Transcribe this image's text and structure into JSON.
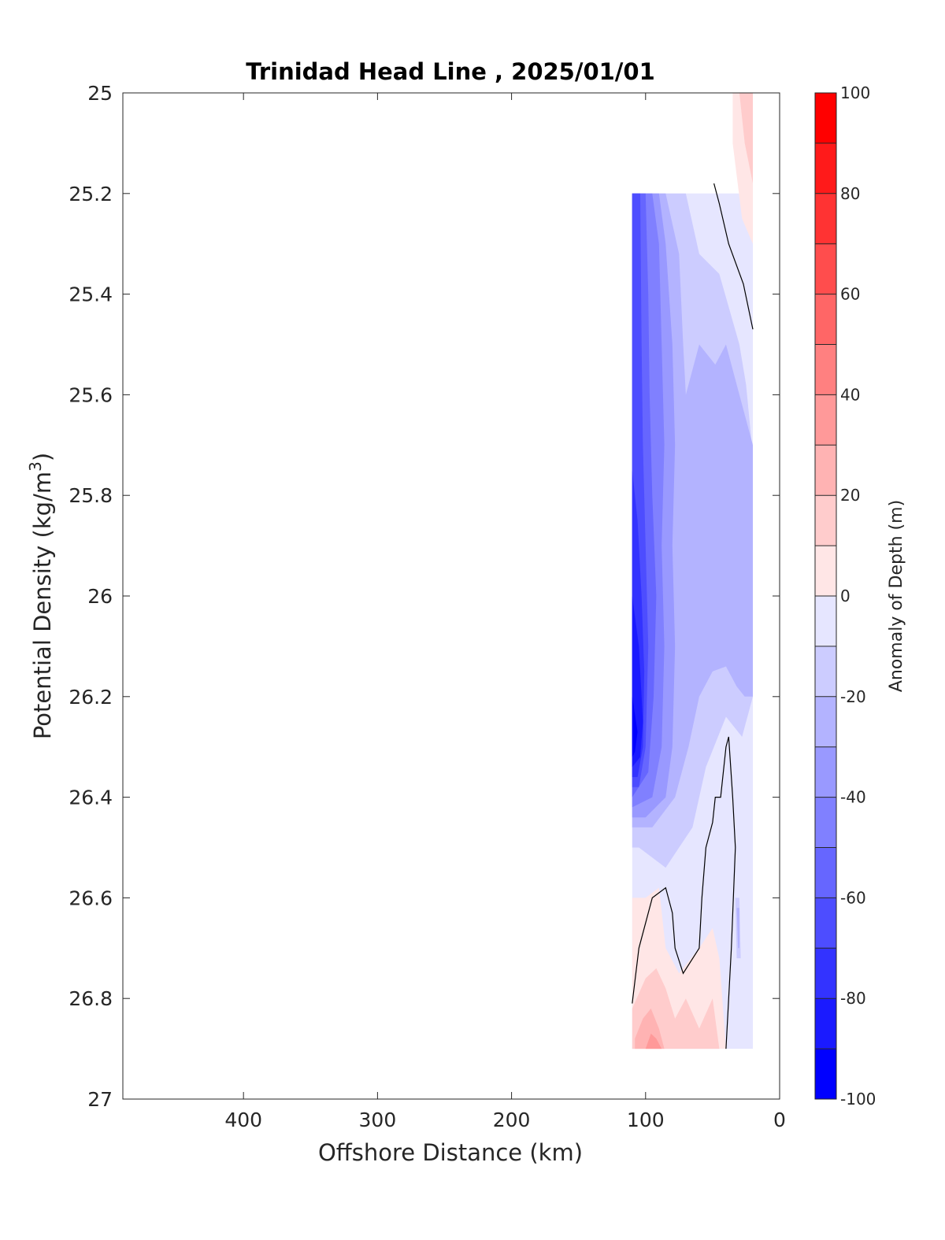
{
  "chart_data": {
    "type": "heatmap",
    "title": "Trinidad Head Line , 2025/01/01",
    "xlabel": "Offshore Distance (km)",
    "ylabel": "Potential Density (kg/m",
    "ylabel_sup": "3",
    "ylabel_end": ")",
    "xlim": [
      490,
      0
    ],
    "ylim": [
      25,
      27
    ],
    "x_reversed": true,
    "y_reversed": true,
    "x_ticks": [
      400,
      300,
      200,
      100,
      0
    ],
    "y_ticks": [
      25,
      25.2,
      25.4,
      25.6,
      25.8,
      26,
      26.2,
      26.4,
      26.6,
      26.8,
      27
    ],
    "y_tick_labels": [
      "25",
      "25.2",
      "25.4",
      "25.6",
      "25.8",
      "26",
      "26.2",
      "26.4",
      "26.6",
      "26.8",
      "27"
    ],
    "colorbar": {
      "label": "Anomaly of Depth (m)",
      "range": [
        -100,
        100
      ],
      "step": 10,
      "ticks": [
        100,
        80,
        60,
        40,
        20,
        0,
        -20,
        -40,
        -60,
        -80,
        -100
      ],
      "colors_low_to_high": [
        "#0000ff",
        "#1a1aff",
        "#3333ff",
        "#4d4dff",
        "#6666ff",
        "#8080ff",
        "#9999ff",
        "#b3b3ff",
        "#ccccff",
        "#e6e6ff",
        "#ffffff",
        "#ffffff",
        "#ffe6e6",
        "#ffcccc",
        "#ffb3b3",
        "#ff9999",
        "#ff8080",
        "#ff6666",
        "#ff4d4d",
        "#ff3333",
        "#ff1a1a",
        "#ff0000"
      ]
    },
    "regions": [
      {
        "value": -5,
        "points": [
          [
            110,
            25.2
          ],
          [
            20,
            25.2
          ],
          [
            20,
            26.9
          ],
          [
            110,
            26.9
          ]
        ]
      },
      {
        "value": -15,
        "points": [
          [
            110,
            25.2
          ],
          [
            70,
            25.2
          ],
          [
            60,
            25.32
          ],
          [
            45,
            25.36
          ],
          [
            30,
            25.5
          ],
          [
            25,
            25.58
          ],
          [
            20,
            25.72
          ],
          [
            20,
            26.2
          ],
          [
            28,
            26.28
          ],
          [
            40,
            26.24
          ],
          [
            55,
            26.34
          ],
          [
            65,
            26.46
          ],
          [
            75,
            26.5
          ],
          [
            85,
            26.54
          ],
          [
            95,
            26.52
          ],
          [
            105,
            26.5
          ],
          [
            110,
            26.5
          ]
        ]
      },
      {
        "value": -25,
        "points": [
          [
            110,
            25.2
          ],
          [
            85,
            25.2
          ],
          [
            75,
            25.32
          ],
          [
            72,
            25.5
          ],
          [
            70,
            25.6
          ],
          [
            60,
            25.5
          ],
          [
            48,
            25.54
          ],
          [
            40,
            25.5
          ],
          [
            30,
            25.6
          ],
          [
            20,
            25.7
          ],
          [
            20,
            26.2
          ],
          [
            26,
            26.2
          ],
          [
            32,
            26.18
          ],
          [
            40,
            26.14
          ],
          [
            50,
            26.15
          ],
          [
            60,
            26.2
          ],
          [
            68,
            26.3
          ],
          [
            78,
            26.4
          ],
          [
            95,
            26.46
          ],
          [
            110,
            26.46
          ]
        ]
      },
      {
        "value": -35,
        "points": [
          [
            110,
            25.2
          ],
          [
            90,
            25.2
          ],
          [
            85,
            25.3
          ],
          [
            80,
            25.5
          ],
          [
            78,
            25.7
          ],
          [
            80,
            25.9
          ],
          [
            78,
            26.1
          ],
          [
            80,
            26.3
          ],
          [
            85,
            26.4
          ],
          [
            100,
            26.44
          ],
          [
            110,
            26.44
          ]
        ]
      },
      {
        "value": -45,
        "points": [
          [
            110,
            25.2
          ],
          [
            95,
            25.2
          ],
          [
            90,
            25.3
          ],
          [
            88,
            25.5
          ],
          [
            86,
            25.7
          ],
          [
            88,
            25.9
          ],
          [
            86,
            26.1
          ],
          [
            88,
            26.3
          ],
          [
            95,
            26.4
          ],
          [
            110,
            26.42
          ]
        ]
      },
      {
        "value": -55,
        "points": [
          [
            110,
            25.2
          ],
          [
            100,
            25.2
          ],
          [
            98,
            25.4
          ],
          [
            97,
            25.6
          ],
          [
            95,
            25.8
          ],
          [
            92,
            26.0
          ],
          [
            94,
            26.2
          ],
          [
            98,
            26.35
          ],
          [
            110,
            26.4
          ]
        ]
      },
      {
        "value": -65,
        "points": [
          [
            110,
            25.2
          ],
          [
            104,
            25.2
          ],
          [
            103,
            25.5
          ],
          [
            102,
            25.7
          ],
          [
            100,
            25.9
          ],
          [
            98,
            26.1
          ],
          [
            100,
            26.3
          ],
          [
            105,
            26.38
          ],
          [
            110,
            26.38
          ]
        ]
      },
      {
        "value": -75,
        "points": [
          [
            110,
            25.75
          ],
          [
            106,
            25.85
          ],
          [
            103,
            26.0
          ],
          [
            101,
            26.15
          ],
          [
            102,
            26.3
          ],
          [
            106,
            26.36
          ],
          [
            110,
            26.36
          ]
        ]
      },
      {
        "value": -85,
        "points": [
          [
            110,
            26.0
          ],
          [
            105,
            26.1
          ],
          [
            102,
            26.25
          ],
          [
            104,
            26.32
          ],
          [
            110,
            26.34
          ]
        ]
      },
      {
        "value": -95,
        "points": [
          [
            110,
            26.2
          ],
          [
            106,
            26.27
          ],
          [
            108,
            26.31
          ],
          [
            110,
            26.32
          ]
        ]
      },
      {
        "value": 5,
        "points": [
          [
            110,
            26.6
          ],
          [
            100,
            26.6
          ],
          [
            90,
            26.58
          ],
          [
            85,
            26.7
          ],
          [
            75,
            26.75
          ],
          [
            60,
            26.7
          ],
          [
            50,
            26.66
          ],
          [
            45,
            26.72
          ],
          [
            40,
            26.9
          ],
          [
            110,
            26.9
          ]
        ]
      },
      {
        "value": 15,
        "points": [
          [
            110,
            26.82
          ],
          [
            100,
            26.76
          ],
          [
            92,
            26.74
          ],
          [
            85,
            26.78
          ],
          [
            78,
            26.84
          ],
          [
            70,
            26.8
          ],
          [
            60,
            26.86
          ],
          [
            50,
            26.8
          ],
          [
            45,
            26.9
          ],
          [
            110,
            26.9
          ]
        ]
      },
      {
        "value": 25,
        "points": [
          [
            108,
            26.88
          ],
          [
            102,
            26.84
          ],
          [
            96,
            26.82
          ],
          [
            90,
            26.86
          ],
          [
            86,
            26.9
          ],
          [
            108,
            26.9
          ]
        ]
      },
      {
        "value": 35,
        "points": [
          [
            100,
            26.9
          ],
          [
            96,
            26.87
          ],
          [
            92,
            26.88
          ],
          [
            88,
            26.9
          ]
        ]
      },
      {
        "value": 5,
        "points": [
          [
            35,
            25
          ],
          [
            20,
            25
          ],
          [
            20,
            25.3
          ],
          [
            28,
            25.25
          ],
          [
            35,
            25.1
          ]
        ]
      },
      {
        "value": 15,
        "points": [
          [
            30,
            25
          ],
          [
            20,
            25
          ],
          [
            20,
            25.18
          ],
          [
            26,
            25.1
          ]
        ]
      },
      {
        "value": -15,
        "points": [
          [
            33,
            26.6
          ],
          [
            30,
            26.6
          ],
          [
            29,
            26.72
          ],
          [
            32,
            26.72
          ]
        ]
      },
      {
        "value": -25,
        "points": [
          [
            32,
            26.62
          ],
          [
            30,
            26.62
          ],
          [
            30,
            26.7
          ],
          [
            31,
            26.7
          ]
        ]
      }
    ],
    "contour_zero": [
      {
        "points": [
          [
            49,
            25.18
          ],
          [
            45,
            25.22
          ],
          [
            38,
            25.3
          ],
          [
            27,
            25.38
          ],
          [
            20,
            25.47
          ]
        ]
      },
      {
        "points": [
          [
            110,
            26.81
          ],
          [
            105,
            26.7
          ],
          [
            95,
            26.6
          ],
          [
            85,
            26.58
          ],
          [
            80,
            26.63
          ],
          [
            78,
            26.7
          ],
          [
            72,
            26.75
          ],
          [
            60,
            26.7
          ],
          [
            58,
            26.6
          ],
          [
            55,
            26.5
          ],
          [
            50,
            26.45
          ],
          [
            48,
            26.4
          ],
          [
            44,
            26.4
          ],
          [
            40,
            26.3
          ],
          [
            38,
            26.28
          ],
          [
            35,
            26.4
          ],
          [
            33,
            26.5
          ],
          [
            36,
            26.7
          ],
          [
            40,
            26.9
          ]
        ]
      }
    ]
  }
}
